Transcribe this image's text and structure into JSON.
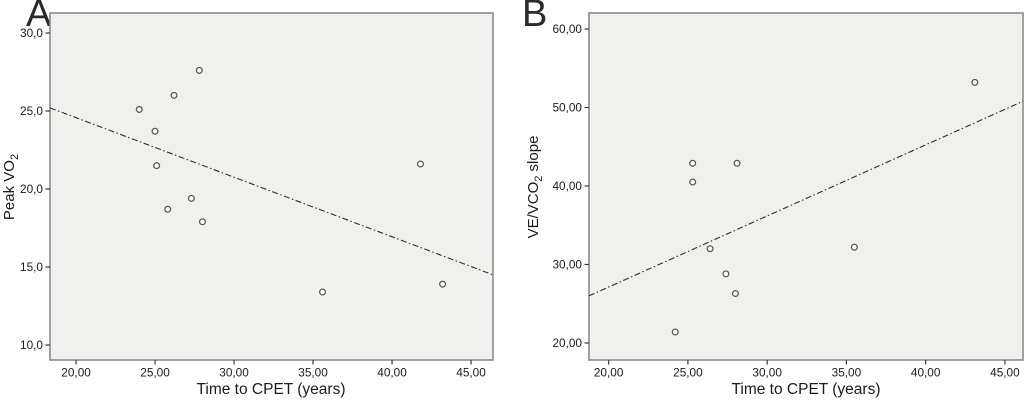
{
  "styles": {
    "page_bg": "#ffffff",
    "plot_bg": "#f0f0ef",
    "plot_border": "#8b8b8b",
    "tick_color": "#3a3a3a",
    "tick_label_color": "#1c1c1c",
    "marker_stroke": "#565656",
    "marker_fill": "#fbfbfb",
    "fit_line_color": "#2f2f2f"
  },
  "chart_data": [
    {
      "type": "scatter",
      "panel_label": "A",
      "xlabel": "Time to CPET (years)",
      "ylabel_parts": {
        "prefix": "Peak VO",
        "sub": "2",
        "suffix": ""
      },
      "xlim": [
        18.35,
        46.39
      ],
      "ylim": [
        9.04,
        31.28
      ],
      "grid": false,
      "legend": false,
      "x_ticks": {
        "values": [
          20,
          25,
          30,
          35,
          40,
          45
        ],
        "labels": [
          "20,00",
          "25,00",
          "30,00",
          "35,00",
          "40,00",
          "45,00"
        ]
      },
      "y_ticks": {
        "values": [
          30,
          25,
          20,
          15,
          10
        ],
        "labels": [
          "30,0",
          "25,0",
          "20,0",
          "15,0",
          "10,0"
        ]
      },
      "points": [
        [
          24.0,
          25.1
        ],
        [
          25.0,
          23.7
        ],
        [
          25.1,
          21.5
        ],
        [
          25.8,
          18.7
        ],
        [
          26.2,
          26.0
        ],
        [
          27.3,
          19.4
        ],
        [
          27.8,
          27.6
        ],
        [
          28.0,
          17.9
        ],
        [
          35.6,
          13.4
        ],
        [
          41.8,
          21.6
        ],
        [
          43.2,
          13.9
        ]
      ],
      "fit_line": {
        "x1": 18.35,
        "y1": 25.2,
        "x2": 46.39,
        "y2": 14.5
      }
    },
    {
      "type": "scatter",
      "panel_label": "B",
      "xlabel": "Time to CPET (years)",
      "ylabel_parts": {
        "prefix": "VE/VCO",
        "sub": "2",
        "suffix": " slope"
      },
      "xlim": [
        18.76,
        46.14
      ],
      "ylim": [
        17.83,
        62.04
      ],
      "grid": false,
      "legend": false,
      "x_ticks": {
        "values": [
          20,
          25,
          30,
          35,
          40,
          45
        ],
        "labels": [
          "20,00",
          "25,00",
          "30,00",
          "35,00",
          "40,00",
          "45,00"
        ]
      },
      "y_ticks": {
        "values": [
          60,
          50,
          40,
          30,
          20
        ],
        "labels": [
          "60,00",
          "50,00",
          "40,00",
          "30,00",
          "20,00"
        ]
      },
      "points": [
        [
          24.2,
          21.4
        ],
        [
          25.3,
          42.9
        ],
        [
          25.3,
          40.5
        ],
        [
          26.4,
          32.0
        ],
        [
          27.4,
          28.8
        ],
        [
          28.0,
          26.3
        ],
        [
          28.1,
          42.9
        ],
        [
          35.5,
          32.2
        ],
        [
          43.1,
          53.2
        ]
      ],
      "fit_line": {
        "x1": 18.76,
        "y1": 26.0,
        "x2": 46.14,
        "y2": 50.8
      }
    }
  ]
}
